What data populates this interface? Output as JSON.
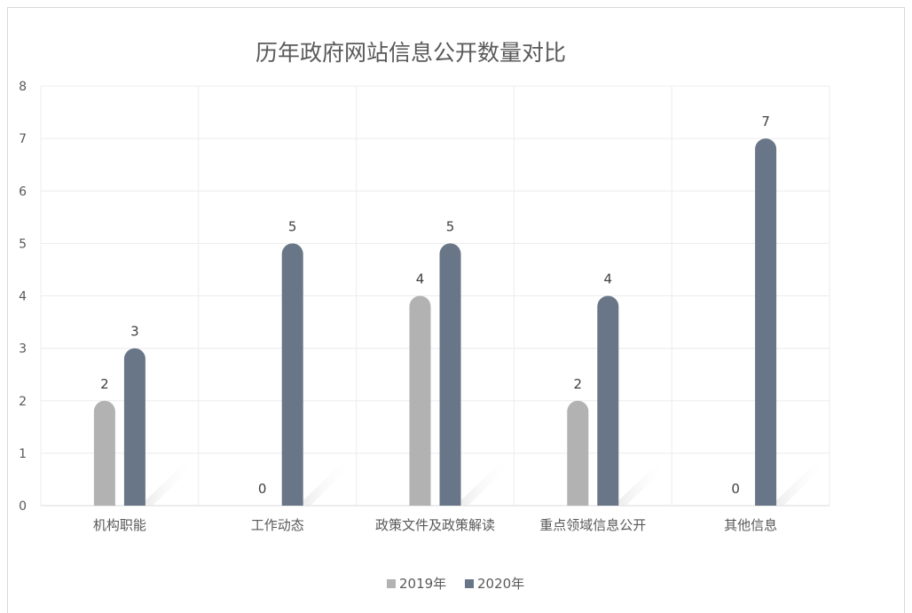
{
  "chart_data": {
    "type": "bar",
    "title": "历年政府网站信息公开数量对比",
    "xlabel": "",
    "ylabel": "",
    "ylim": [
      0,
      8
    ],
    "yticks": [
      0,
      1,
      2,
      3,
      4,
      5,
      6,
      7,
      8
    ],
    "grid": true,
    "legend_position": "bottom",
    "categories": [
      "机构职能",
      "工作动态",
      "政策文件及政策解读",
      "重点领域信息公开",
      "其他信息"
    ],
    "series": [
      {
        "name": "2019年",
        "values": [
          2,
          0,
          4,
          2,
          0
        ],
        "color": "#b2b2b2"
      },
      {
        "name": "2020年",
        "values": [
          3,
          5,
          5,
          4,
          7
        ],
        "color": "#687687"
      }
    ],
    "data_labels": true
  }
}
